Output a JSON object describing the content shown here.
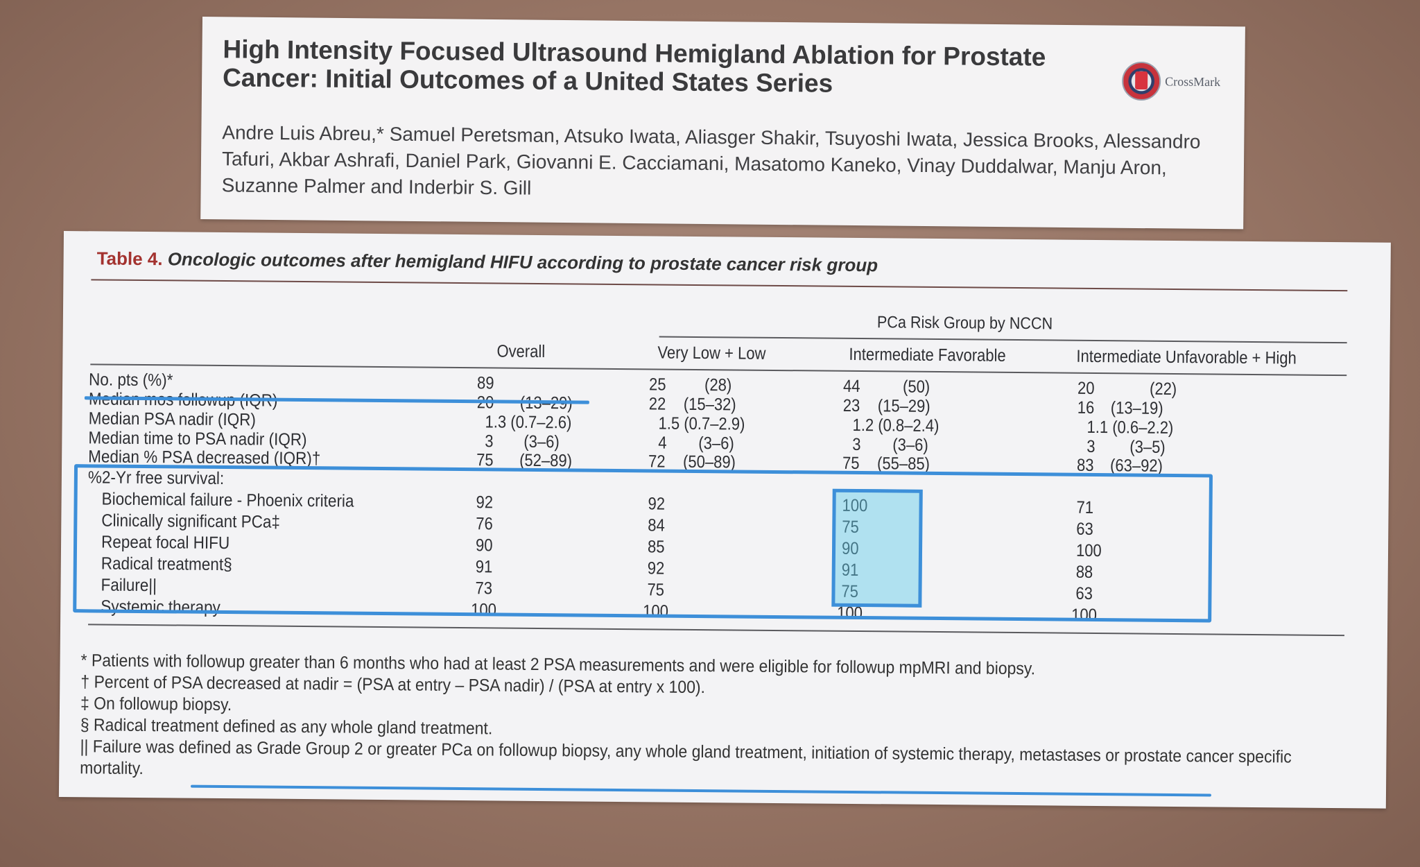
{
  "paper": {
    "title": "High Intensity Focused Ultrasound Hemigland Ablation for Prostate Cancer: Initial Outcomes of a United States Series",
    "authors": "Andre Luis Abreu,* Samuel Peretsman, Atsuko Iwata, Aliasger Shakir, Tsuyoshi Iwata, Jessica Brooks, Alessandro Tafuri, Akbar Ashrafi, Daniel Park, Giovanni E. Cacciamani, Masatomo Kaneko, Vinay Duddalwar, Manju Aron, Suzanne Palmer and Inderbir S. Gill",
    "crossmark_label": "CrossMark"
  },
  "table": {
    "caption_label": "Table 4.",
    "caption_text": "Oncologic outcomes after hemigland HIFU according to prostate cancer risk group",
    "spanner": "PCa Risk Group by NCCN",
    "columns": [
      "Overall",
      "Very Low + Low",
      "Intermediate Favorable",
      "Intermediate Unfavorable + High"
    ],
    "rows": [
      {
        "label": "No. pts (%)*",
        "cells": [
          [
            "89",
            ""
          ],
          [
            "25",
            "(28)"
          ],
          [
            "44",
            "(50)"
          ],
          [
            "20",
            "(22)"
          ]
        ]
      },
      {
        "label": "Median mos followup (IQR)",
        "cells": [
          [
            "20",
            "(13–29)"
          ],
          [
            "22",
            "(15–32)"
          ],
          [
            "23",
            "(15–29)"
          ],
          [
            "16",
            "(13–19)"
          ]
        ]
      },
      {
        "label": "Median PSA nadir (IQR)",
        "cells": [
          [
            "1.3 (0.7–2.6)",
            ""
          ],
          [
            "1.5 (0.7–2.9)",
            ""
          ],
          [
            "1.2 (0.8–2.4)",
            ""
          ],
          [
            "1.1 (0.6–2.2)",
            ""
          ]
        ]
      },
      {
        "label": "Median time to PSA nadir (IQR)",
        "cells": [
          [
            "3",
            "(3–6)"
          ],
          [
            "4",
            "(3–6)"
          ],
          [
            "3",
            "(3–6)"
          ],
          [
            "3",
            "(3–5)"
          ]
        ]
      },
      {
        "label": "Median % PSA decreased (IQR)†",
        "cells": [
          [
            "75",
            "(52–89)"
          ],
          [
            "72",
            "(50–89)"
          ],
          [
            "75",
            "(55–85)"
          ],
          [
            "83",
            "(63–92)"
          ]
        ]
      }
    ],
    "survival_header": "%2-Yr free survival:",
    "survival_rows": [
      {
        "label": "Biochemical failure - Phoenix criteria",
        "values": [
          "92",
          "92",
          "100",
          "71"
        ]
      },
      {
        "label": "Clinically significant PCa‡",
        "values": [
          "76",
          "84",
          "75",
          "63"
        ]
      },
      {
        "label": "Repeat focal HIFU",
        "values": [
          "90",
          "85",
          "90",
          "100"
        ]
      },
      {
        "label": "Radical treatment§",
        "values": [
          "91",
          "92",
          "91",
          "88"
        ]
      },
      {
        "label": "Failure||",
        "values": [
          "73",
          "75",
          "75",
          "63"
        ]
      },
      {
        "label": "Systemic therapy",
        "values": [
          "100",
          "100",
          "100",
          "100"
        ]
      }
    ],
    "footnotes": [
      "* Patients with followup greater than 6 months who had at least 2 PSA measurements and were eligible for followup mpMRI and biopsy.",
      "† Percent of PSA decreased at nadir = (PSA at entry – PSA nadir) / (PSA at entry x 100).",
      "‡ On followup biopsy.",
      "§ Radical treatment defined as any whole gland treatment.",
      "|| Failure was defined as Grade Group 2 or greater PCa on followup biopsy, any whole gland treatment, initiation of systemic therapy, metastases or prostate cancer specific",
      "mortality."
    ]
  },
  "colors": {
    "highlight": "#3d8fd9",
    "highlight_fill": "#5fcdeb",
    "caption_accent": "#a3322f"
  }
}
